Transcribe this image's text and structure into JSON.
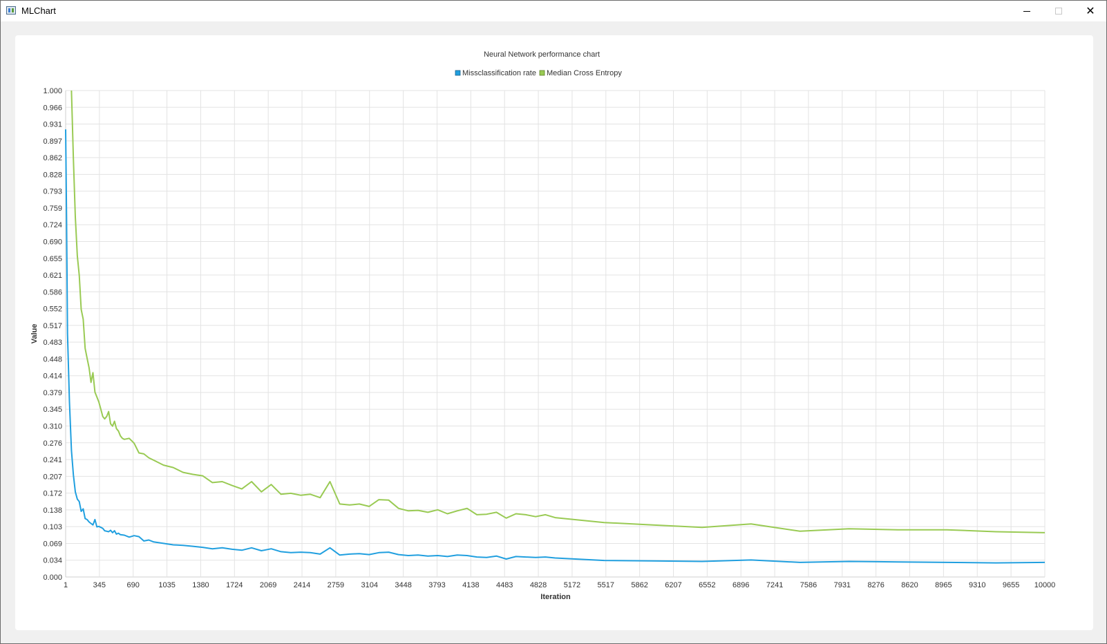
{
  "window": {
    "title": "MLChart"
  },
  "chart_data": {
    "type": "line",
    "title": "Neural Network performance chart",
    "xlabel": "Iteration",
    "ylabel": "Value",
    "xlim": [
      1,
      10000
    ],
    "ylim": [
      0,
      1
    ],
    "x_ticks": [
      "1",
      "345",
      "690",
      "1035",
      "1380",
      "1724",
      "2069",
      "2414",
      "2759",
      "3104",
      "3448",
      "3793",
      "4138",
      "4483",
      "4828",
      "5172",
      "5517",
      "5862",
      "6207",
      "6552",
      "6896",
      "7241",
      "7586",
      "7931",
      "8276",
      "8620",
      "8965",
      "9310",
      "9655",
      "10000"
    ],
    "y_ticks": [
      "0.000",
      "0.034",
      "0.069",
      "0.103",
      "0.138",
      "0.172",
      "0.207",
      "0.241",
      "0.276",
      "0.310",
      "0.345",
      "0.379",
      "0.414",
      "0.448",
      "0.483",
      "0.517",
      "0.552",
      "0.586",
      "0.621",
      "0.655",
      "0.690",
      "0.724",
      "0.759",
      "0.793",
      "0.828",
      "0.862",
      "0.897",
      "0.931",
      "0.966",
      "1.000"
    ],
    "grid": true,
    "legend_position": "top",
    "series": [
      {
        "name": "Missclassification rate",
        "color": "#209fdf",
        "x": [
          1,
          10,
          20,
          40,
          60,
          80,
          100,
          120,
          140,
          160,
          180,
          200,
          220,
          240,
          260,
          280,
          300,
          320,
          340,
          360,
          380,
          400,
          420,
          440,
          460,
          480,
          500,
          520,
          540,
          560,
          600,
          650,
          700,
          750,
          800,
          850,
          900,
          1000,
          1100,
          1200,
          1300,
          1400,
          1500,
          1600,
          1700,
          1800,
          1900,
          2000,
          2100,
          2200,
          2300,
          2400,
          2500,
          2600,
          2700,
          2800,
          2900,
          3000,
          3100,
          3200,
          3300,
          3400,
          3500,
          3600,
          3700,
          3800,
          3900,
          4000,
          4100,
          4200,
          4300,
          4400,
          4500,
          4600,
          4700,
          4800,
          4900,
          5000,
          5500,
          6000,
          6500,
          7000,
          7500,
          8000,
          8500,
          9000,
          9500,
          10000
        ],
        "values": [
          0.92,
          0.74,
          0.5,
          0.36,
          0.26,
          0.21,
          0.175,
          0.16,
          0.155,
          0.135,
          0.14,
          0.12,
          0.118,
          0.113,
          0.11,
          0.107,
          0.118,
          0.103,
          0.104,
          0.102,
          0.1,
          0.095,
          0.094,
          0.093,
          0.096,
          0.091,
          0.095,
          0.088,
          0.09,
          0.087,
          0.086,
          0.082,
          0.085,
          0.083,
          0.074,
          0.076,
          0.072,
          0.069,
          0.066,
          0.065,
          0.063,
          0.061,
          0.058,
          0.06,
          0.057,
          0.055,
          0.06,
          0.054,
          0.058,
          0.052,
          0.05,
          0.051,
          0.05,
          0.047,
          0.06,
          0.045,
          0.047,
          0.048,
          0.046,
          0.05,
          0.051,
          0.046,
          0.044,
          0.045,
          0.043,
          0.044,
          0.042,
          0.045,
          0.044,
          0.041,
          0.04,
          0.043,
          0.037,
          0.042,
          0.041,
          0.04,
          0.041,
          0.039,
          0.034,
          0.033,
          0.032,
          0.035,
          0.03,
          0.032,
          0.031,
          0.03,
          0.029,
          0.03
        ]
      },
      {
        "name": "Median Cross Entropy",
        "color": "#99ca53",
        "x": [
          60,
          80,
          100,
          120,
          140,
          160,
          180,
          200,
          220,
          240,
          260,
          280,
          300,
          320,
          340,
          360,
          380,
          400,
          420,
          440,
          460,
          480,
          500,
          520,
          540,
          560,
          580,
          600,
          650,
          700,
          750,
          800,
          850,
          900,
          1000,
          1100,
          1200,
          1300,
          1400,
          1500,
          1600,
          1700,
          1800,
          1900,
          2000,
          2100,
          2200,
          2300,
          2400,
          2500,
          2600,
          2700,
          2800,
          2900,
          3000,
          3100,
          3200,
          3300,
          3400,
          3500,
          3600,
          3700,
          3800,
          3900,
          4000,
          4100,
          4200,
          4300,
          4400,
          4500,
          4600,
          4700,
          4800,
          4900,
          5000,
          5500,
          6000,
          6500,
          7000,
          7500,
          8000,
          8500,
          9000,
          9500,
          10000
        ],
        "values": [
          1.0,
          0.86,
          0.74,
          0.66,
          0.62,
          0.55,
          0.53,
          0.47,
          0.45,
          0.43,
          0.4,
          0.42,
          0.38,
          0.37,
          0.36,
          0.345,
          0.33,
          0.325,
          0.33,
          0.34,
          0.315,
          0.31,
          0.32,
          0.305,
          0.3,
          0.29,
          0.285,
          0.283,
          0.285,
          0.275,
          0.255,
          0.253,
          0.245,
          0.24,
          0.23,
          0.225,
          0.215,
          0.211,
          0.208,
          0.194,
          0.196,
          0.188,
          0.181,
          0.196,
          0.175,
          0.19,
          0.17,
          0.172,
          0.168,
          0.17,
          0.163,
          0.196,
          0.15,
          0.148,
          0.15,
          0.145,
          0.159,
          0.158,
          0.141,
          0.136,
          0.137,
          0.133,
          0.138,
          0.13,
          0.136,
          0.141,
          0.128,
          0.129,
          0.133,
          0.121,
          0.13,
          0.128,
          0.124,
          0.128,
          0.122,
          0.112,
          0.107,
          0.102,
          0.109,
          0.094,
          0.099,
          0.097,
          0.097,
          0.093,
          0.091
        ]
      }
    ]
  }
}
